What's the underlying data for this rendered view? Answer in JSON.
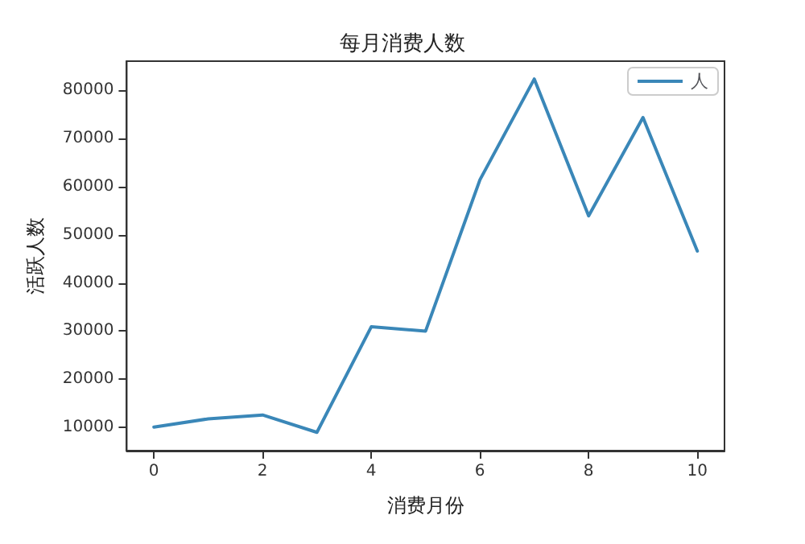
{
  "chart_data": {
    "type": "line",
    "title": "每月消费人数",
    "xlabel": "消费月份",
    "ylabel": "活跃人数",
    "x": [
      0,
      1,
      2,
      3,
      4,
      5,
      6,
      7,
      8,
      9,
      10
    ],
    "series": [
      {
        "name": "人",
        "color": "#3a87b8",
        "values": [
          10100,
          11800,
          12600,
          9000,
          30900,
          30000,
          61400,
          82300,
          53900,
          74300,
          46600
        ]
      }
    ],
    "xlim": [
      -0.5,
      10.5
    ],
    "ylim": [
      5200,
      86000
    ],
    "xticks": [
      0,
      2,
      4,
      6,
      8,
      10
    ],
    "yticks": [
      10000,
      20000,
      30000,
      40000,
      50000,
      60000,
      70000,
      80000
    ],
    "grid": false,
    "legend": "top right",
    "marker": "none",
    "line_style": "solid"
  }
}
